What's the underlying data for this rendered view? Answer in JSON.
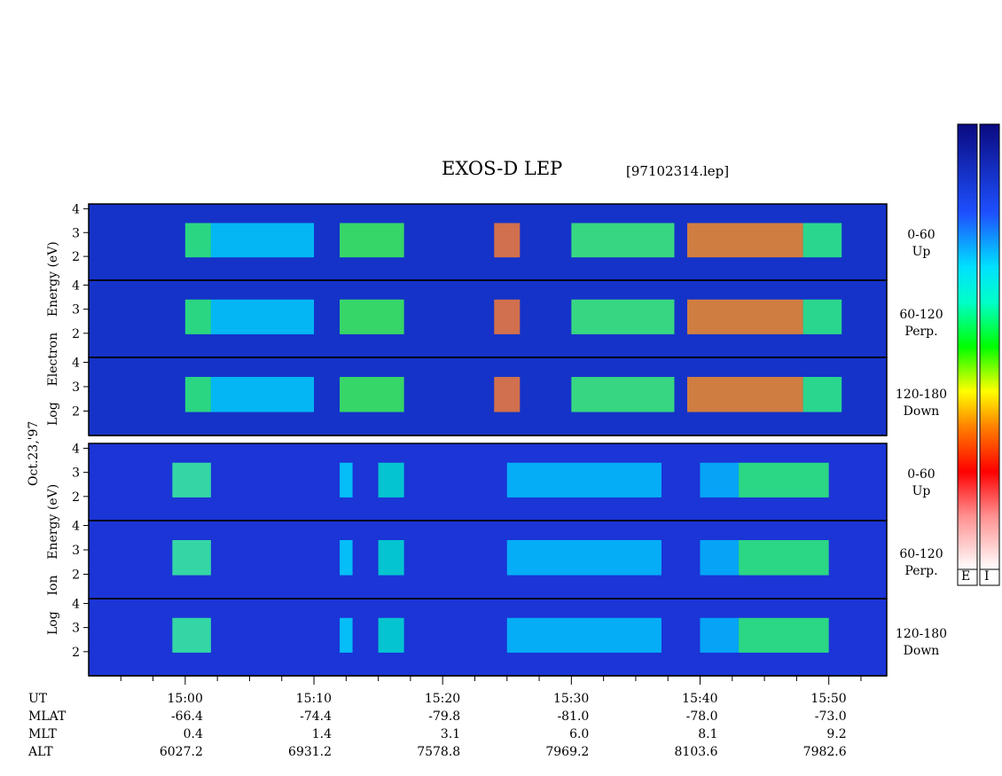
{
  "header": {
    "title": "EXOS-D LEP",
    "filename": "[97102314.lep]"
  },
  "y_axis_labels": {
    "electron": [
      "Log",
      "Electron",
      "Energy",
      "(eV)"
    ],
    "ion": [
      "Log",
      "Ion",
      "Energy",
      "(eV)"
    ],
    "date": "Oct.23,'97"
  },
  "panel_labels": [
    {
      "range": "0-60",
      "dir": "Up"
    },
    {
      "range": "60-120",
      "dir": "Perp."
    },
    {
      "range": "120-180",
      "dir": "Down"
    },
    {
      "range": "0-60",
      "dir": "Up"
    },
    {
      "range": "60-120",
      "dir": "Perp."
    },
    {
      "range": "120-180",
      "dir": "Down"
    }
  ],
  "colorbars": {
    "electron_label": "E",
    "ion_label": "I"
  },
  "ephemeris": {
    "row_labels": [
      "UT",
      "MLAT",
      "MLT",
      "ALT"
    ],
    "columns": [
      {
        "UT": "15:00",
        "MLAT": "-66.4",
        "MLT": "0.4",
        "ALT": "6027.2"
      },
      {
        "UT": "15:10",
        "MLAT": "-74.4",
        "MLT": "1.4",
        "ALT": "6931.2"
      },
      {
        "UT": "15:20",
        "MLAT": "-79.8",
        "MLT": "3.1",
        "ALT": "7578.8"
      },
      {
        "UT": "15:30",
        "MLAT": "-81.0",
        "MLT": "6.0",
        "ALT": "7969.2"
      },
      {
        "UT": "15:40",
        "MLAT": "-78.0",
        "MLT": "8.1",
        "ALT": "8103.6"
      },
      {
        "UT": "15:50",
        "MLAT": "-73.0",
        "MLT": "9.2",
        "ALT": "7982.6"
      }
    ]
  },
  "chart_data": {
    "type": "heatmap",
    "title": "EXOS-D LEP",
    "x_axis": {
      "label": "UT",
      "ticks": [
        "15:00",
        "15:10",
        "15:20",
        "15:30",
        "15:40",
        "15:50"
      ],
      "range_min": [
        52.5,
        114.5
      ]
    },
    "y_axis": {
      "label": "Log Energy (eV)",
      "ticks": [
        2,
        3,
        4
      ],
      "range": [
        1,
        4.2
      ]
    },
    "panels": [
      {
        "species": "Electron",
        "pitch_angle": "0-60",
        "direction": "Up"
      },
      {
        "species": "Electron",
        "pitch_angle": "60-120",
        "direction": "Perp."
      },
      {
        "species": "Electron",
        "pitch_angle": "120-180",
        "direction": "Down"
      },
      {
        "species": "Ion",
        "pitch_angle": "0-60",
        "direction": "Up"
      },
      {
        "species": "Ion",
        "pitch_angle": "60-120",
        "direction": "Perp."
      },
      {
        "species": "Ion",
        "pitch_angle": "120-180",
        "direction": "Down"
      }
    ],
    "colorscale": [
      "#0a0a78",
      "#1430e6",
      "#00c8ff",
      "#00ff60",
      "#ffff00",
      "#ff8000",
      "#ff0000",
      "#ffffff"
    ]
  }
}
